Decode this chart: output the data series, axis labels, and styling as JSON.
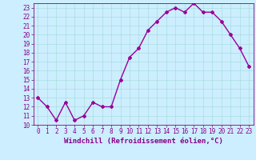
{
  "x": [
    0,
    1,
    2,
    3,
    4,
    5,
    6,
    7,
    8,
    9,
    10,
    11,
    12,
    13,
    14,
    15,
    16,
    17,
    18,
    19,
    20,
    21,
    22,
    23
  ],
  "y": [
    13,
    12,
    10.5,
    12.5,
    10.5,
    11,
    12.5,
    12,
    12,
    15,
    17.5,
    18.5,
    20.5,
    21.5,
    22.5,
    23,
    22.5,
    23.5,
    22.5,
    22.5,
    21.5,
    20,
    18.5,
    16.5
  ],
  "line_color": "#990099",
  "marker": "D",
  "marker_size": 2,
  "bg_color": "#cceeff",
  "grid_color": "#aadddd",
  "xlabel": "Windchill (Refroidissement éolien,°C)",
  "ylim": [
    10,
    23.5
  ],
  "xlim": [
    -0.5,
    23.5
  ],
  "yticks": [
    10,
    11,
    12,
    13,
    14,
    15,
    16,
    17,
    18,
    19,
    20,
    21,
    22,
    23
  ],
  "xticks": [
    0,
    1,
    2,
    3,
    4,
    5,
    6,
    7,
    8,
    9,
    10,
    11,
    12,
    13,
    14,
    15,
    16,
    17,
    18,
    19,
    20,
    21,
    22,
    23
  ],
  "tick_color": "#880088",
  "label_fontsize": 6.5,
  "tick_fontsize": 5.5,
  "linewidth": 1.0
}
